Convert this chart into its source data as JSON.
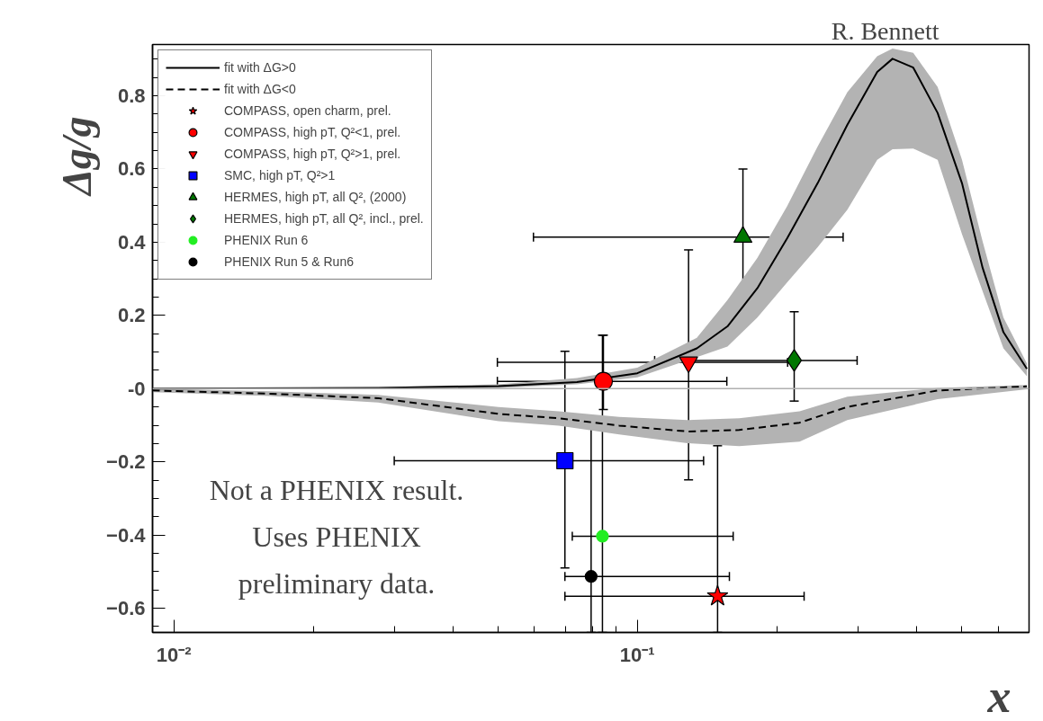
{
  "chart_data": {
    "type": "scatter",
    "xlabel": "x",
    "ylabel": "Δg/g",
    "log": "x",
    "grid": false,
    "legend": "top left",
    "xlim": [
      0.009,
      0.7
    ],
    "ylim": [
      -0.666,
      0.94
    ],
    "xticks": [
      {
        "value": 0.01,
        "label": "10⁻²"
      },
      {
        "value": 0.1,
        "label": "10⁻¹"
      },
      {
        "value": 0.02,
        "label": null
      },
      {
        "value": 0.03,
        "label": null
      },
      {
        "value": 0.04,
        "label": null
      },
      {
        "value": 0.05,
        "label": null
      },
      {
        "value": 0.06,
        "label": null
      },
      {
        "value": 0.07,
        "label": null
      },
      {
        "value": 0.08,
        "label": null
      },
      {
        "value": 0.09,
        "label": null
      },
      {
        "value": 0.2,
        "label": null
      },
      {
        "value": 0.3,
        "label": null
      },
      {
        "value": 0.4,
        "label": null
      },
      {
        "value": 0.5,
        "label": null
      },
      {
        "value": 0.6,
        "label": null
      }
    ],
    "yticks": [
      -0.6,
      -0.4,
      -0.2,
      {
        "value": 0,
        "label": "-0"
      },
      0.2,
      0.4,
      0.6,
      0.8,
      {
        "value": -0.65,
        "label": null
      },
      {
        "value": -0.55,
        "label": null
      },
      {
        "value": -0.5,
        "label": null
      },
      {
        "value": -0.45,
        "label": null
      },
      {
        "value": -0.35,
        "label": null
      },
      {
        "value": -0.3,
        "label": null
      },
      {
        "value": -0.25,
        "label": null
      },
      {
        "value": -0.15,
        "label": null
      },
      {
        "value": -0.1,
        "label": null
      },
      {
        "value": -0.05,
        "label": null
      },
      {
        "value": 0.05,
        "label": null
      },
      {
        "value": 0.1,
        "label": null
      },
      {
        "value": 0.15,
        "label": null
      },
      {
        "value": 0.25,
        "label": null
      },
      {
        "value": 0.3,
        "label": null
      },
      {
        "value": 0.35,
        "label": null
      },
      {
        "value": 0.45,
        "label": null
      },
      {
        "value": 0.5,
        "label": null
      },
      {
        "value": 0.55,
        "label": null
      },
      {
        "value": 0.65,
        "label": null
      },
      {
        "value": 0.7,
        "label": null
      },
      {
        "value": 0.75,
        "label": null
      },
      {
        "value": 0.85,
        "label": null
      },
      {
        "value": 0.9,
        "label": null
      }
    ],
    "ref_lines": [
      {
        "axis": "y",
        "value": 0,
        "label": null,
        "color": "#b0b0b0"
      }
    ],
    "annotations": [
      "R. Bennett",
      "Not a PHENIX result.\nUses PHENIX\npreliminary data."
    ],
    "series": [
      {
        "name": "fit with ΔG>0",
        "type": "line",
        "color": "#000000",
        "line_style": "solid",
        "x": [
          0.009,
          0.0276,
          0.0502,
          0.0741,
          0.1,
          0.1344,
          0.1565,
          0.1815,
          0.2104,
          0.2449,
          0.2839,
          0.3293,
          0.3553,
          0.3938,
          0.4445,
          0.5017,
          0.5558,
          0.6164,
          0.6925
        ],
        "values": [
          0,
          0.002,
          0.007,
          0.018,
          0.042,
          0.11,
          0.17,
          0.274,
          0.41,
          0.561,
          0.721,
          0.865,
          0.901,
          0.877,
          0.753,
          0.561,
          0.33,
          0.154,
          0.054
        ],
        "lower": [
          -0.002,
          0,
          0.002,
          0.012,
          0.031,
          0.086,
          0.115,
          0.194,
          0.29,
          0.386,
          0.489,
          0.625,
          0.654,
          0.656,
          0.625,
          0.422,
          0.266,
          0.11,
          0.034
        ],
        "upper": [
          0.002,
          0.004,
          0.012,
          0.029,
          0.057,
          0.139,
          0.242,
          0.357,
          0.498,
          0.661,
          0.81,
          0.908,
          0.929,
          0.917,
          0.824,
          0.625,
          0.402,
          0.194,
          0.069
        ]
      },
      {
        "name": "fit with ΔG<0",
        "type": "line",
        "color": "#000000",
        "line_style": "dashed",
        "x": [
          0.009,
          0.01615,
          0.0276,
          0.0502,
          0.0677,
          0.0914,
          0.1285,
          0.1659,
          0.2239,
          0.2839,
          0.4445,
          0.6925
        ],
        "values": [
          -0.005,
          -0.014,
          -0.026,
          -0.069,
          -0.081,
          -0.101,
          -0.117,
          -0.113,
          -0.093,
          -0.05,
          -0.005,
          0.006
        ],
        "lower": [
          -0.01,
          -0.02,
          -0.038,
          -0.089,
          -0.101,
          -0.125,
          -0.149,
          -0.157,
          -0.145,
          -0.086,
          -0.029,
          -0.002
        ],
        "upper": [
          0,
          -0.007,
          -0.017,
          -0.05,
          -0.062,
          -0.077,
          -0.086,
          -0.081,
          -0.062,
          -0.022,
          0.002,
          0.01
        ]
      },
      {
        "name": "COMPASS, open charm, prel.",
        "marker": "star",
        "color": "#ff0000",
        "x": [
          0.149
        ],
        "values": [
          -0.567
        ],
        "errors": [
          [
            -0.666,
            -0.156
          ]
        ],
        "xerrors": [
          [
            0.0698,
            0.229
          ]
        ]
      },
      {
        "name": "COMPASS, high pT, Q²<1, prel.",
        "marker": "circle",
        "color": "#ff0000",
        "x": [
          0.0845
        ],
        "values": [
          0.02
        ],
        "errors": [
          [
            -0.057,
            0.146
          ]
        ],
        "xerrors": [
          [
            0.0499,
            0.156
          ]
        ]
      },
      {
        "name": "COMPASS, high pT, Q²>1, prel.",
        "color": "#ff0000",
        "x": [
          0.129
        ],
        "values": [
          0.072
        ],
        "errors": [
          [
            -0.249,
            0.379
          ]
        ],
        "xerrors": [
          [
            0.0499,
            0.211
          ]
        ]
      },
      {
        "name": "SMC, high pT, Q²>1",
        "marker": "square",
        "color": "#0000ff",
        "x": [
          0.0698
        ],
        "values": [
          -0.197
        ],
        "errors": [
          [
            -0.49,
            0.102
          ]
        ],
        "xerrors": [
          [
            0.0299,
            0.139
          ]
        ]
      },
      {
        "name": "HERMES, high pT, all Q², (2000)",
        "marker": "triangle",
        "color": "#007700",
        "x": [
          0.169
        ],
        "values": [
          0.414
        ],
        "errors": [
          [
            0.235,
            0.6
          ]
        ],
        "xerrors": [
          [
            0.0597,
            0.278
          ]
        ]
      },
      {
        "name": "HERMES, high pT, all Q², incl., prel.",
        "marker": "diamond",
        "color": "#007700",
        "x": [
          0.218
        ],
        "values": [
          0.077
        ],
        "errors": [
          [
            -0.034,
            0.21
          ]
        ],
        "xerrors": [
          [
            0.109,
            0.298
          ]
        ]
      },
      {
        "name": "PHENIX Run 6",
        "marker": "circle",
        "color": "#22ee22",
        "x": [
          0.0841
        ],
        "values": [
          -0.403
        ],
        "errors": [
          [
            -0.666,
            0.146
          ]
        ],
        "xerrors": [
          [
            0.0724,
            0.161
          ]
        ]
      },
      {
        "name": "PHENIX Run 5 & Run6",
        "marker": "circle",
        "color": "#000000",
        "x": [
          0.0795
        ],
        "values": [
          -0.513
        ],
        "errors": [
          [
            -0.666,
            -0.091
          ]
        ],
        "xerrors": [
          [
            0.0698,
            0.158
          ]
        ]
      }
    ]
  }
}
